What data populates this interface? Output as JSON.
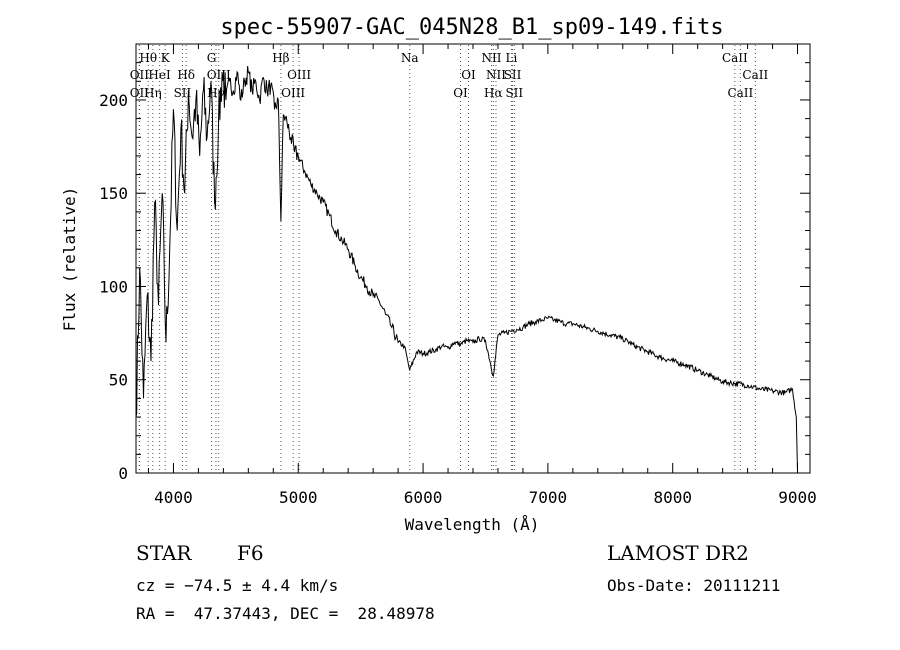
{
  "chart_data": {
    "type": "line",
    "title": "spec-55907-GAC_045N28_B1_sp09-149.fits",
    "xlabel": "Wavelength (Å)",
    "ylabel": "Flux (relative)",
    "xlim": [
      3700,
      9100
    ],
    "ylim": [
      0,
      230
    ],
    "xticks": [
      4000,
      5000,
      6000,
      7000,
      8000,
      9000
    ],
    "yticks": [
      0,
      50,
      100,
      150,
      200
    ],
    "grid": false,
    "series": [
      {
        "name": "",
        "color": "#000000",
        "x": [
          3700,
          3730,
          3760,
          3790,
          3820,
          3850,
          3880,
          3910,
          3940,
          3970,
          4000,
          4030,
          4060,
          4090,
          4120,
          4150,
          4180,
          4210,
          4240,
          4270,
          4300,
          4330,
          4360,
          4390,
          4420,
          4450,
          4480,
          4510,
          4540,
          4570,
          4600,
          4630,
          4660,
          4690,
          4720,
          4750,
          4780,
          4810,
          4840,
          4861,
          4880,
          4910,
          4940,
          4970,
          5000,
          5050,
          5100,
          5150,
          5200,
          5250,
          5300,
          5350,
          5400,
          5450,
          5500,
          5550,
          5600,
          5650,
          5700,
          5750,
          5800,
          5850,
          5893,
          5950,
          6000,
          6050,
          6100,
          6150,
          6200,
          6250,
          6300,
          6350,
          6400,
          6450,
          6500,
          6563,
          6600,
          6650,
          6700,
          6750,
          6800,
          6850,
          6900,
          6950,
          7000,
          7050,
          7100,
          7150,
          7200,
          7300,
          7400,
          7500,
          7600,
          7700,
          7800,
          7900,
          8000,
          8100,
          8200,
          8300,
          8400,
          8500,
          8600,
          8700,
          8800,
          8900,
          8960,
          8990,
          9000
        ],
        "y": [
          30,
          110,
          40,
          95,
          60,
          145,
          90,
          150,
          70,
          120,
          195,
          130,
          185,
          150,
          205,
          180,
          200,
          170,
          205,
          180,
          210,
          145,
          185,
          215,
          200,
          210,
          205,
          215,
          200,
          210,
          215,
          205,
          210,
          200,
          212,
          205,
          208,
          195,
          200,
          135,
          192,
          188,
          180,
          172,
          170,
          162,
          155,
          150,
          145,
          138,
          130,
          125,
          120,
          112,
          105,
          100,
          95,
          92,
          85,
          78,
          70,
          68,
          55,
          65,
          64,
          65,
          66,
          68,
          67,
          70,
          69,
          71,
          70,
          72,
          71,
          52,
          74,
          75,
          76,
          77,
          78,
          80,
          81,
          82,
          83,
          82,
          81,
          80,
          80,
          78,
          76,
          74,
          72,
          68,
          65,
          62,
          60,
          58,
          55,
          52,
          49,
          48,
          47,
          45,
          44,
          43,
          45,
          30,
          1
        ]
      }
    ],
    "line_markers": [
      {
        "label": "Hθ",
        "x": 3798,
        "row": 0
      },
      {
        "label": "K",
        "x": 3934,
        "row": 0
      },
      {
        "label": "OII",
        "x": 3727,
        "row": 1
      },
      {
        "label": "HeI",
        "x": 3889,
        "row": 1
      },
      {
        "label": "Hδ",
        "x": 4102,
        "row": 1
      },
      {
        "label": "OII",
        "x": 3727,
        "row": 2
      },
      {
        "label": "Hη",
        "x": 3835,
        "row": 2
      },
      {
        "label": "SII",
        "x": 4072,
        "row": 2
      },
      {
        "label": "G",
        "x": 4305,
        "row": 0
      },
      {
        "label": "OIII",
        "x": 4363,
        "row": 1
      },
      {
        "label": "Hγ",
        "x": 4341,
        "row": 2
      },
      {
        "label": "Hβ",
        "x": 4861,
        "row": 0
      },
      {
        "label": "OIII",
        "x": 5007,
        "row": 1
      },
      {
        "label": "OIII",
        "x": 4959,
        "row": 2
      },
      {
        "label": "Na",
        "x": 5893,
        "row": 0
      },
      {
        "label": "OI",
        "x": 6364,
        "row": 1
      },
      {
        "label": "OI",
        "x": 6300,
        "row": 2
      },
      {
        "label": "NII",
        "x": 6548,
        "row": 0
      },
      {
        "label": "Li",
        "x": 6708,
        "row": 0
      },
      {
        "label": "NII",
        "x": 6584,
        "row": 1
      },
      {
        "label": "SII",
        "x": 6717,
        "row": 1
      },
      {
        "label": "Hα",
        "x": 6563,
        "row": 2
      },
      {
        "label": "SII",
        "x": 6731,
        "row": 2
      },
      {
        "label": "CaII",
        "x": 8498,
        "row": 0
      },
      {
        "label": "CaII",
        "x": 8662,
        "row": 1
      },
      {
        "label": "CaII",
        "x": 8542,
        "row": 2
      }
    ]
  },
  "info": {
    "object_class": "STAR",
    "subclass": "F6",
    "survey": "LAMOST DR2",
    "cz": "cz = −74.5 ± 4.4 km/s",
    "obs_date": "Obs-Date: 20111211",
    "coords": "RA =  47.37443, DEC =  28.48978"
  }
}
